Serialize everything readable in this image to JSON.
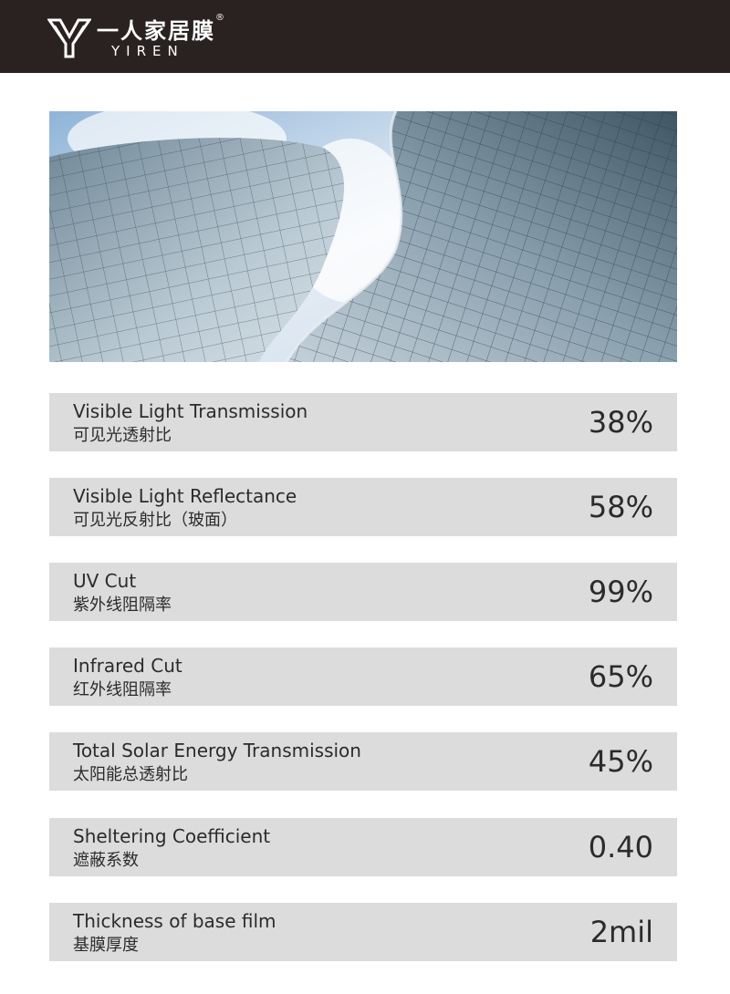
{
  "header": {
    "brand_cn": "一人家居膜",
    "brand_reg": "®",
    "brand_en": "YIREN"
  },
  "hero": {
    "image_icon": "curved-glass-building-image"
  },
  "specs": [
    {
      "en": "Visible Light Transmission",
      "cn": "可见光透射比",
      "value": "38%"
    },
    {
      "en": "Visible Light Reflectance",
      "cn": "可见光反射比（玻面）",
      "value": "58%"
    },
    {
      "en": "UV Cut",
      "cn": "紫外线阻隔率",
      "value": "99%"
    },
    {
      "en": "Infrared Cut",
      "cn": "红外线阻隔率",
      "value": "65%"
    },
    {
      "en": "Total Solar Energy Transmission",
      "cn": "太阳能总透射比",
      "value": "45%"
    },
    {
      "en": "Sheltering Coefficient",
      "cn": "遮蔽系数",
      "value": "0.40"
    },
    {
      "en": "Thickness of base film",
      "cn": "基膜厚度",
      "value": "2mil"
    }
  ],
  "colors": {
    "header_bg": "#2a2221",
    "row_bg": "#dcdcdc",
    "text": "#2b2b2b"
  }
}
